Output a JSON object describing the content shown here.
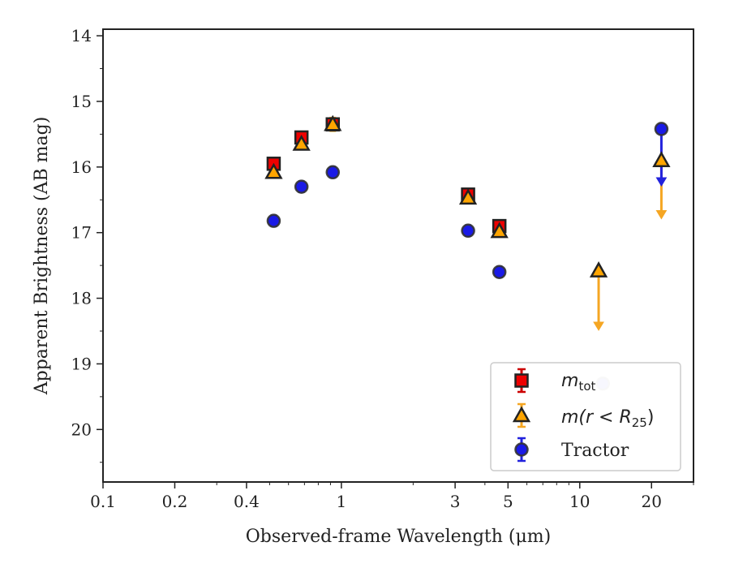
{
  "chart_data": {
    "type": "scatter",
    "xlabel": "Observed-frame Wavelength (μm)",
    "ylabel": "Apparent Brightness (AB mag)",
    "x_scale": "log",
    "xlim": [
      0.1,
      30
    ],
    "ylim": [
      20.8,
      13.9
    ],
    "y_inverted": true,
    "grid": false,
    "legend_position": "lower-right",
    "x_ticks": [
      {
        "value": 0.1,
        "label": "0.1"
      },
      {
        "value": 0.2,
        "label": "0.2"
      },
      {
        "value": 0.4,
        "label": "0.4"
      },
      {
        "value": 1,
        "label": "1"
      },
      {
        "value": 3,
        "label": "3"
      },
      {
        "value": 5,
        "label": "5"
      },
      {
        "value": 10,
        "label": "10"
      },
      {
        "value": 20,
        "label": "20"
      }
    ],
    "y_ticks": [
      {
        "value": 14,
        "label": "14"
      },
      {
        "value": 15,
        "label": "15"
      },
      {
        "value": 16,
        "label": "16"
      },
      {
        "value": 17,
        "label": "17"
      },
      {
        "value": 18,
        "label": "18"
      },
      {
        "value": 19,
        "label": "19"
      },
      {
        "value": 20,
        "label": "20"
      }
    ],
    "series": [
      {
        "key": "mtot",
        "legend_main": "m",
        "legend_sub": "tot",
        "marker": "square",
        "color": "#ee0000",
        "edge_color": "#222222",
        "errbar_color": "#cc0000",
        "points": [
          {
            "x": 0.52,
            "y": 15.95,
            "err": 0.05
          },
          {
            "x": 0.68,
            "y": 15.55,
            "err": 0.05
          },
          {
            "x": 0.92,
            "y": 15.35,
            "err": 0.05
          },
          {
            "x": 3.4,
            "y": 16.42,
            "err": 0.05
          },
          {
            "x": 4.6,
            "y": 16.9,
            "err": 0.05
          }
        ]
      },
      {
        "key": "mr25",
        "legend_main": "m(r < R",
        "legend_sub": "25",
        "legend_tail": ")",
        "marker": "triangle",
        "color": "#ffa500",
        "edge_color": "#222222",
        "errbar_color": "#f5a623",
        "points": [
          {
            "x": 0.52,
            "y": 16.08,
            "err": 0.05
          },
          {
            "x": 0.68,
            "y": 15.65,
            "err": 0.05
          },
          {
            "x": 0.92,
            "y": 15.35,
            "err": 0.1
          },
          {
            "x": 3.4,
            "y": 16.47,
            "err": 0.05
          },
          {
            "x": 4.6,
            "y": 16.98,
            "err": 0.05
          },
          {
            "x": 12.0,
            "y": 17.58,
            "upper_limit": true,
            "arrow_to": 18.45
          },
          {
            "x": 22.0,
            "y": 15.9,
            "upper_limit": true,
            "arrow_to": 16.75
          }
        ]
      },
      {
        "key": "tractor",
        "legend_main": "Tractor",
        "marker": "circle",
        "color": "#1a1ae6",
        "edge_color": "#333333",
        "errbar_color": "#2222dd",
        "points": [
          {
            "x": 0.52,
            "y": 16.82,
            "err": 0.08
          },
          {
            "x": 0.68,
            "y": 16.3,
            "err": 0.08
          },
          {
            "x": 0.92,
            "y": 16.08,
            "err": 0.08
          },
          {
            "x": 3.4,
            "y": 16.97,
            "err": 0.08
          },
          {
            "x": 4.6,
            "y": 17.6,
            "err": 0.08
          },
          {
            "x": 12.5,
            "y": 19.3,
            "faint": true
          },
          {
            "x": 22.0,
            "y": 15.42,
            "upper_limit": true,
            "arrow_to": 16.25
          }
        ]
      }
    ]
  }
}
